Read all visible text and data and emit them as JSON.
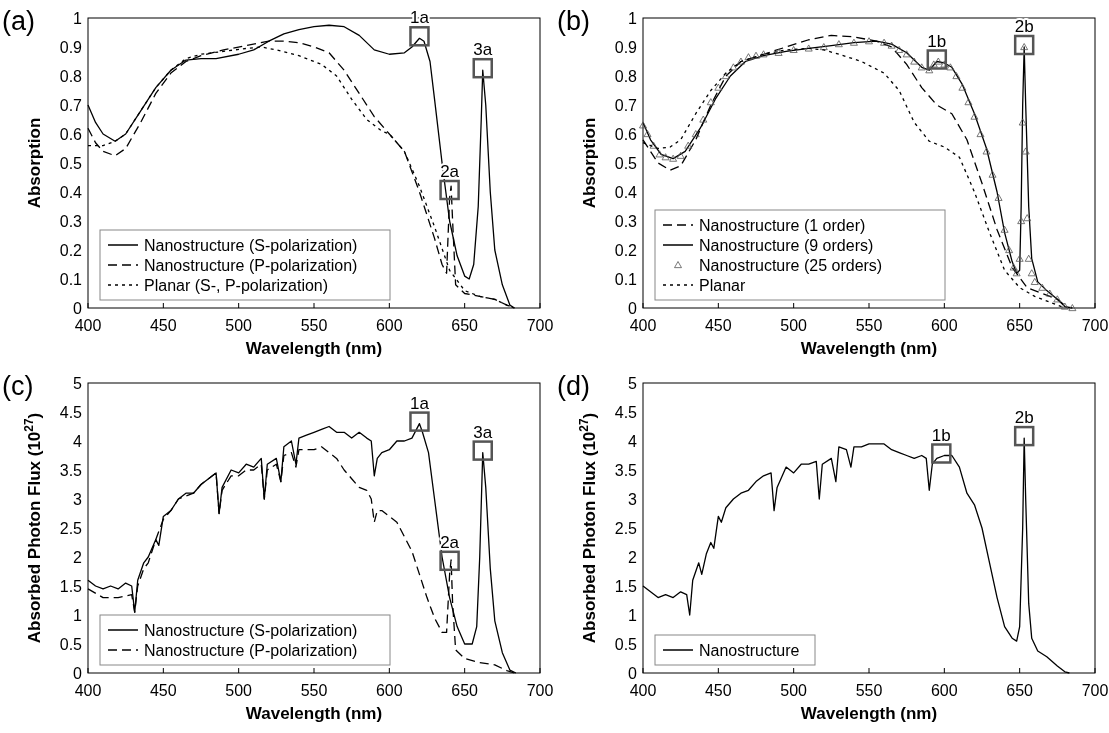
{
  "chart_data": [
    {
      "type": "line",
      "title": "(a)",
      "xlabel": "Wavelength (nm)",
      "ylabel": "Absorption",
      "xlim": [
        400,
        700
      ],
      "ylim": [
        0,
        1
      ],
      "xticks": [
        400,
        450,
        500,
        550,
        600,
        650,
        700
      ],
      "yticks": [
        0,
        0.1,
        0.2,
        0.3,
        0.4,
        0.5,
        0.6,
        0.7,
        0.8,
        0.9,
        1
      ],
      "legend": "bottom left",
      "grid": false,
      "annotations": [
        {
          "text": "1a",
          "x": 620,
          "y": 0.93
        },
        {
          "text": "2a",
          "x": 640,
          "y": 0.4
        },
        {
          "text": "3a",
          "x": 662,
          "y": 0.82
        }
      ],
      "series": [
        {
          "name": "Nanostructure (S-polarization)",
          "color": "#000000",
          "line_style": "solid",
          "x": [
            400,
            405,
            410,
            418,
            425,
            435,
            445,
            455,
            465,
            475,
            485,
            500,
            510,
            520,
            530,
            540,
            550,
            560,
            570,
            580,
            590,
            600,
            610,
            615,
            620,
            623,
            627,
            630,
            635,
            640,
            645,
            650,
            653,
            656,
            659,
            661,
            662,
            664,
            667,
            670,
            675,
            680,
            683
          ],
          "values": [
            0.7,
            0.64,
            0.6,
            0.575,
            0.6,
            0.68,
            0.76,
            0.82,
            0.855,
            0.86,
            0.86,
            0.875,
            0.89,
            0.92,
            0.945,
            0.96,
            0.97,
            0.975,
            0.97,
            0.94,
            0.89,
            0.875,
            0.88,
            0.9,
            0.93,
            0.92,
            0.85,
            0.72,
            0.5,
            0.3,
            0.18,
            0.11,
            0.1,
            0.15,
            0.35,
            0.65,
            0.82,
            0.7,
            0.4,
            0.2,
            0.08,
            0.01,
            0
          ]
        },
        {
          "name": "Nanostructure (P-polarization)",
          "color": "#000000",
          "line_style": "dashed",
          "x": [
            400,
            405,
            410,
            418,
            425,
            435,
            445,
            455,
            465,
            475,
            490,
            505,
            520,
            530,
            540,
            550,
            560,
            570,
            580,
            590,
            600,
            610,
            620,
            630,
            635,
            638,
            640,
            641,
            642,
            644,
            650,
            660,
            670,
            678,
            683
          ],
          "values": [
            0.62,
            0.57,
            0.54,
            0.525,
            0.55,
            0.64,
            0.74,
            0.81,
            0.85,
            0.87,
            0.89,
            0.905,
            0.92,
            0.92,
            0.915,
            0.9,
            0.88,
            0.82,
            0.74,
            0.66,
            0.6,
            0.54,
            0.4,
            0.24,
            0.15,
            0.12,
            0.38,
            0.42,
            0.3,
            0.08,
            0.05,
            0.04,
            0.03,
            0.01,
            0
          ]
        },
        {
          "name": "Planar (S-, P-polarization)",
          "color": "#000000",
          "line_style": "dotted",
          "x": [
            400,
            410,
            418,
            425,
            435,
            445,
            455,
            465,
            475,
            490,
            505,
            515,
            525,
            540,
            555,
            565,
            575,
            585,
            595,
            600,
            610,
            620,
            630,
            640,
            650,
            660,
            670,
            678,
            683
          ],
          "values": [
            0.56,
            0.56,
            0.575,
            0.6,
            0.68,
            0.76,
            0.82,
            0.86,
            0.875,
            0.885,
            0.895,
            0.9,
            0.89,
            0.87,
            0.84,
            0.8,
            0.72,
            0.65,
            0.61,
            0.6,
            0.54,
            0.42,
            0.28,
            0.13,
            0.06,
            0.04,
            0.03,
            0.01,
            0
          ]
        }
      ]
    },
    {
      "type": "line",
      "title": "(b)",
      "xlabel": "Wavelength (nm)",
      "ylabel": "Absorption",
      "xlim": [
        400,
        700
      ],
      "ylim": [
        0,
        1
      ],
      "xticks": [
        400,
        450,
        500,
        550,
        600,
        650,
        700
      ],
      "yticks": [
        0,
        0.1,
        0.2,
        0.3,
        0.4,
        0.5,
        0.6,
        0.7,
        0.8,
        0.9,
        1
      ],
      "legend": "bottom left",
      "grid": false,
      "annotations": [
        {
          "text": "1b",
          "x": 595,
          "y": 0.85
        },
        {
          "text": "2b",
          "x": 653,
          "y": 0.9
        }
      ],
      "series": [
        {
          "name": "Nanostructure (1 order)",
          "color": "#000000",
          "line_style": "dashed",
          "x": [
            400,
            410,
            418,
            425,
            435,
            445,
            455,
            465,
            480,
            495,
            510,
            525,
            540,
            555,
            565,
            575,
            585,
            595,
            605,
            615,
            625,
            635,
            645,
            655,
            665,
            675,
            682
          ],
          "values": [
            0.58,
            0.5,
            0.475,
            0.49,
            0.58,
            0.7,
            0.8,
            0.85,
            0.875,
            0.9,
            0.925,
            0.94,
            0.935,
            0.92,
            0.9,
            0.84,
            0.76,
            0.7,
            0.67,
            0.58,
            0.43,
            0.27,
            0.14,
            0.07,
            0.05,
            0.03,
            0
          ]
        },
        {
          "name": "Nanostructure (9 orders)",
          "color": "#000000",
          "line_style": "solid",
          "x": [
            400,
            405,
            412,
            420,
            428,
            438,
            448,
            458,
            468,
            480,
            495,
            510,
            525,
            540,
            555,
            565,
            575,
            585,
            590,
            595,
            600,
            605,
            612,
            620,
            628,
            635,
            640,
            645,
            648,
            650,
            651,
            652,
            653,
            654,
            656,
            658,
            662,
            668,
            675,
            680,
            685
          ],
          "values": [
            0.64,
            0.58,
            0.53,
            0.515,
            0.54,
            0.62,
            0.72,
            0.8,
            0.85,
            0.87,
            0.885,
            0.895,
            0.905,
            0.915,
            0.92,
            0.91,
            0.88,
            0.83,
            0.82,
            0.85,
            0.845,
            0.83,
            0.77,
            0.67,
            0.55,
            0.4,
            0.26,
            0.16,
            0.12,
            0.13,
            0.35,
            0.7,
            0.9,
            0.7,
            0.35,
            0.17,
            0.09,
            0.06,
            0.03,
            0.005,
            0
          ]
        },
        {
          "name": "Nanostructure (25 orders)",
          "type": "scatter",
          "marker": "triangle",
          "color": "#555555",
          "x": [
            400,
            403,
            407,
            411,
            415,
            420,
            425,
            430,
            435,
            440,
            445,
            450,
            455,
            460,
            465,
            470,
            475,
            480,
            490,
            500,
            510,
            520,
            530,
            540,
            550,
            560,
            565,
            570,
            575,
            580,
            585,
            590,
            593,
            596,
            600,
            604,
            608,
            612,
            616,
            620,
            624,
            628,
            632,
            636,
            640,
            643,
            646,
            648,
            650,
            651,
            652,
            653,
            654,
            655,
            656,
            658,
            660,
            665,
            670,
            675,
            680,
            685
          ],
          "values": [
            0.63,
            0.6,
            0.56,
            0.53,
            0.52,
            0.515,
            0.525,
            0.56,
            0.6,
            0.65,
            0.71,
            0.76,
            0.8,
            0.83,
            0.85,
            0.865,
            0.87,
            0.875,
            0.88,
            0.89,
            0.895,
            0.9,
            0.91,
            0.915,
            0.92,
            0.915,
            0.905,
            0.89,
            0.875,
            0.85,
            0.83,
            0.82,
            0.84,
            0.85,
            0.84,
            0.83,
            0.8,
            0.76,
            0.71,
            0.66,
            0.6,
            0.54,
            0.46,
            0.38,
            0.27,
            0.2,
            0.14,
            0.12,
            0.17,
            0.3,
            0.64,
            0.9,
            0.54,
            0.31,
            0.17,
            0.12,
            0.09,
            0.07,
            0.05,
            0.03,
            0.005,
            0
          ]
        },
        {
          "name": "Planar",
          "color": "#000000",
          "line_style": "dotted",
          "x": [
            400,
            410,
            418,
            425,
            435,
            445,
            455,
            465,
            480,
            495,
            510,
            520,
            530,
            545,
            560,
            570,
            580,
            590,
            600,
            610,
            620,
            630,
            640,
            650,
            660,
            670,
            680
          ],
          "values": [
            0.57,
            0.55,
            0.555,
            0.58,
            0.67,
            0.75,
            0.81,
            0.85,
            0.875,
            0.89,
            0.895,
            0.89,
            0.875,
            0.85,
            0.81,
            0.75,
            0.64,
            0.575,
            0.555,
            0.52,
            0.4,
            0.26,
            0.13,
            0.07,
            0.04,
            0.02,
            0
          ]
        }
      ]
    },
    {
      "type": "line",
      "title": "(c)",
      "xlabel": "Wavelength (nm)",
      "ylabel": "Absorbed Photon Flux (10$^{27}$)",
      "xlim": [
        400,
        700
      ],
      "ylim": [
        0,
        5
      ],
      "xticks": [
        400,
        450,
        500,
        550,
        600,
        650,
        700
      ],
      "yticks": [
        0,
        0.5,
        1,
        1.5,
        2,
        2.5,
        3,
        3.5,
        4,
        4.5,
        5
      ],
      "legend": "bottom left",
      "grid": false,
      "annotations": [
        {
          "text": "1a",
          "x": 620,
          "y": 4.3
        },
        {
          "text": "2a",
          "x": 640,
          "y": 1.9
        },
        {
          "text": "3a",
          "x": 662,
          "y": 3.8
        }
      ],
      "series": [
        {
          "name": "Nanostructure (S-polarization)",
          "color": "#000000",
          "line_style": "solid",
          "x": [
            400,
            405,
            410,
            415,
            420,
            425,
            429,
            431,
            433,
            437,
            440,
            445,
            447,
            450,
            455,
            460,
            465,
            470,
            475,
            480,
            485,
            487,
            489,
            495,
            500,
            505,
            510,
            515,
            517,
            519,
            525,
            528,
            530,
            535,
            538,
            540,
            545,
            550,
            555,
            560,
            565,
            570,
            575,
            580,
            585,
            588,
            590,
            592,
            595,
            600,
            605,
            610,
            615,
            620,
            622,
            626,
            630,
            635,
            640,
            645,
            650,
            655,
            658,
            660,
            662,
            664,
            667,
            670,
            675,
            680,
            684
          ],
          "values": [
            1.6,
            1.5,
            1.45,
            1.5,
            1.45,
            1.55,
            1.5,
            1.05,
            1.6,
            1.9,
            2,
            2.3,
            2.2,
            2.7,
            2.8,
            3,
            3.1,
            3.1,
            3.25,
            3.35,
            3.45,
            2.75,
            3.2,
            3.5,
            3.45,
            3.6,
            3.55,
            3.7,
            3,
            3.6,
            3.7,
            3.3,
            3.9,
            4,
            3.6,
            4.05,
            4.1,
            4.15,
            4.2,
            4.25,
            4.15,
            4.15,
            4.05,
            4.15,
            4.05,
            4,
            3.4,
            3.7,
            3.8,
            3.85,
            4,
            4,
            4.05,
            4.3,
            4.15,
            3.8,
            3,
            2,
            1.3,
            0.8,
            0.5,
            0.5,
            0.8,
            2,
            3.8,
            3.2,
            1.8,
            0.9,
            0.35,
            0.05,
            0
          ]
        },
        {
          "name": "Nanostructure (P-polarization)",
          "color": "#000000",
          "line_style": "dashed",
          "x": [
            400,
            410,
            420,
            429,
            431,
            433,
            437,
            440,
            445,
            450,
            455,
            460,
            465,
            470,
            475,
            480,
            485,
            487,
            489,
            495,
            500,
            505,
            510,
            515,
            517,
            519,
            525,
            528,
            530,
            535,
            538,
            540,
            545,
            550,
            555,
            560,
            565,
            570,
            575,
            580,
            585,
            588,
            590,
            592,
            595,
            600,
            605,
            610,
            615,
            620,
            625,
            630,
            635,
            638,
            640,
            641,
            642,
            644,
            650,
            660,
            670,
            678,
            683
          ],
          "values": [
            1.45,
            1.3,
            1.3,
            1.35,
            1.05,
            1.5,
            1.8,
            1.9,
            2.3,
            2.65,
            2.8,
            3,
            3.05,
            3.1,
            3.25,
            3.35,
            3.45,
            2.75,
            3.15,
            3.4,
            3.4,
            3.5,
            3.5,
            3.6,
            3,
            3.5,
            3.6,
            3.3,
            3.75,
            3.8,
            3.55,
            3.85,
            3.85,
            3.85,
            3.9,
            3.8,
            3.7,
            3.5,
            3.35,
            3.2,
            3.15,
            3,
            2.6,
            2.8,
            2.8,
            2.7,
            2.6,
            2.35,
            2.1,
            1.7,
            1.3,
            0.95,
            0.7,
            0.7,
            1.7,
            1.95,
            1.2,
            0.4,
            0.25,
            0.18,
            0.14,
            0.04,
            0
          ]
        }
      ]
    },
    {
      "type": "line",
      "title": "(d)",
      "xlabel": "Wavelength (nm)",
      "ylabel": "Absorbed Photon Flux (10$^{27}$)",
      "xlim": [
        400,
        700
      ],
      "ylim": [
        0,
        5
      ],
      "xticks": [
        400,
        450,
        500,
        550,
        600,
        650,
        700
      ],
      "yticks": [
        0,
        0.5,
        1,
        1.5,
        2,
        2.5,
        3,
        3.5,
        4,
        4.5,
        5
      ],
      "legend": "bottom left",
      "grid": false,
      "annotations": [
        {
          "text": "1b",
          "x": 598,
          "y": 3.75
        },
        {
          "text": "2b",
          "x": 653,
          "y": 4.05
        }
      ],
      "series": [
        {
          "name": "Nanostructure",
          "color": "#000000",
          "line_style": "solid",
          "x": [
            400,
            405,
            410,
            415,
            420,
            425,
            429,
            431,
            433,
            437,
            439,
            442,
            445,
            447,
            450,
            452,
            455,
            460,
            465,
            470,
            475,
            480,
            485,
            487,
            489,
            495,
            500,
            505,
            510,
            515,
            517,
            519,
            525,
            528,
            530,
            535,
            538,
            540,
            545,
            550,
            555,
            560,
            565,
            570,
            575,
            580,
            585,
            588,
            590,
            592,
            595,
            600,
            605,
            610,
            615,
            620,
            625,
            630,
            635,
            640,
            645,
            648,
            650,
            652,
            653,
            654,
            656,
            658,
            662,
            668,
            675,
            680,
            683
          ],
          "values": [
            1.5,
            1.4,
            1.3,
            1.35,
            1.3,
            1.4,
            1.35,
            1,
            1.6,
            1.9,
            1.7,
            2.05,
            2.25,
            2.15,
            2.7,
            2.6,
            2.85,
            3,
            3.1,
            3.15,
            3.3,
            3.4,
            3.45,
            2.8,
            3.2,
            3.55,
            3.45,
            3.6,
            3.6,
            3.65,
            3,
            3.6,
            3.7,
            3.3,
            3.9,
            3.85,
            3.55,
            3.9,
            3.9,
            3.95,
            3.95,
            3.95,
            3.85,
            3.8,
            3.75,
            3.7,
            3.75,
            3.7,
            3.15,
            3.6,
            3.7,
            3.75,
            3.75,
            3.55,
            3.1,
            2.9,
            2.5,
            1.9,
            1.3,
            0.8,
            0.6,
            0.55,
            0.8,
            2.5,
            4.05,
            3,
            1.2,
            0.6,
            0.38,
            0.28,
            0.12,
            0.02,
            0
          ]
        }
      ]
    }
  ]
}
